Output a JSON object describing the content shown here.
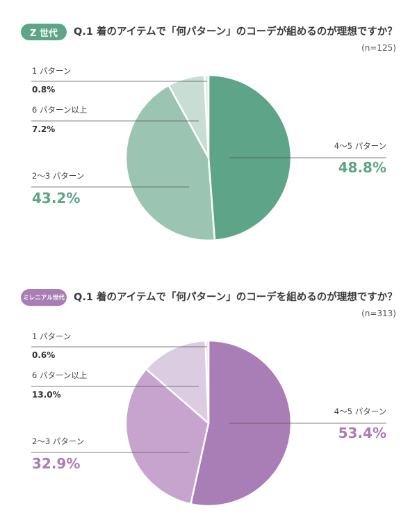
{
  "chart_data": [
    {
      "type": "pie",
      "badge": "Z 世代",
      "title": "Q.1 着のアイテムで「何パターン」のコーデが組めるのが理想ですか？",
      "sample_size": "(n=125)",
      "slices": [
        {
          "label": "4〜5 パターン",
          "value": 48.8,
          "value_text": "48.8%",
          "color": "#5da488"
        },
        {
          "label": "2〜3 パターン",
          "value": 43.2,
          "value_text": "43.2%",
          "color": "#9cc4b3"
        },
        {
          "label": "6 パターン以上",
          "value": 7.2,
          "value_text": "7.2%",
          "color": "#c8ded4"
        },
        {
          "label": "1 パターン",
          "value": 0.8,
          "value_text": "0.8%",
          "color": "#e3eee9"
        }
      ],
      "accent_color": "#5da488"
    },
    {
      "type": "pie",
      "badge": "ミレニアル世代",
      "title": "Q.1 着のアイテムで「何パターン」のコーデを組めるのが理想ですか？",
      "sample_size": "(n=313)",
      "slices": [
        {
          "label": "4〜5 パターン",
          "value": 53.4,
          "value_text": "53.4%",
          "color": "#a97db5"
        },
        {
          "label": "2〜3 パターン",
          "value": 32.9,
          "value_text": "32.9%",
          "color": "#c6a4cd"
        },
        {
          "label": "6 パターン以上",
          "value": 13.0,
          "value_text": "13.0%",
          "color": "#dccce2"
        },
        {
          "label": "1 パターン",
          "value": 0.6,
          "value_text": "0.6%",
          "color": "#ede3f0"
        }
      ],
      "accent_color": "#a97db5"
    }
  ]
}
